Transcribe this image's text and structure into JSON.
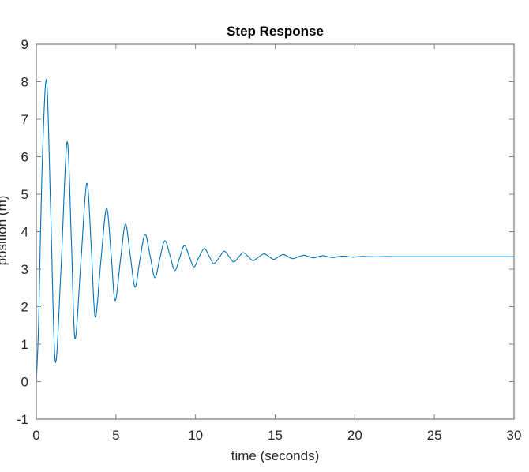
{
  "chart_data": {
    "type": "line",
    "title": "Step Response",
    "xlabel": "time (seconds)",
    "ylabel": "position (m)",
    "xlim": [
      0,
      30
    ],
    "ylim": [
      -1,
      9
    ],
    "xticks": [
      0,
      5,
      10,
      15,
      20,
      25,
      30
    ],
    "yticks": [
      -1,
      0,
      1,
      2,
      3,
      4,
      5,
      6,
      7,
      8,
      9
    ],
    "grid": false,
    "legend": null,
    "line_color": "#0072BD",
    "axis_color": "#808080",
    "series": [
      {
        "name": "step response",
        "x": [
          0,
          0.15,
          0.35,
          0.64,
          0.9,
          1.19,
          1.55,
          1.93,
          2.2,
          2.43,
          2.8,
          3.17,
          3.45,
          3.7,
          4.05,
          4.41,
          4.7,
          4.95,
          5.3,
          5.6,
          5.9,
          6.2,
          6.5,
          6.83,
          7.15,
          7.45,
          7.75,
          8.07,
          8.4,
          8.7,
          9.0,
          9.3,
          9.6,
          9.9,
          10.2,
          10.55,
          10.85,
          11.15,
          11.5,
          11.8,
          12.1,
          12.4,
          12.7,
          13.0,
          13.3,
          13.6,
          13.95,
          14.3,
          14.6,
          14.9,
          15.2,
          15.5,
          15.8,
          16.1,
          16.45,
          16.8,
          17.1,
          17.4,
          17.7,
          18.0,
          18.3,
          18.6,
          18.95,
          19.3,
          19.6,
          19.9,
          20.2,
          20.5,
          20.85,
          21.2,
          21.6,
          22.0,
          22.5,
          23.0,
          24.0,
          25.0,
          27.0,
          30.0
        ],
        "y": [
          0,
          1.6,
          5.5,
          8.05,
          4.6,
          0.54,
          3.0,
          6.39,
          3.8,
          1.15,
          3.2,
          5.29,
          3.6,
          1.72,
          3.2,
          4.62,
          3.4,
          2.16,
          3.3,
          4.2,
          3.37,
          2.52,
          3.23,
          3.93,
          3.35,
          2.77,
          3.27,
          3.76,
          3.36,
          2.96,
          3.3,
          3.63,
          3.35,
          3.06,
          3.31,
          3.55,
          3.35,
          3.15,
          3.32,
          3.48,
          3.34,
          3.19,
          3.32,
          3.44,
          3.34,
          3.23,
          3.32,
          3.41,
          3.34,
          3.26,
          3.33,
          3.39,
          3.335,
          3.28,
          3.33,
          3.37,
          3.335,
          3.3,
          3.333,
          3.36,
          3.334,
          3.31,
          3.333,
          3.35,
          3.334,
          3.32,
          3.333,
          3.34,
          3.333,
          3.33,
          3.333,
          3.335,
          3.333,
          3.333,
          3.333,
          3.333,
          3.333,
          3.333
        ]
      }
    ],
    "final_value": 3.333
  }
}
